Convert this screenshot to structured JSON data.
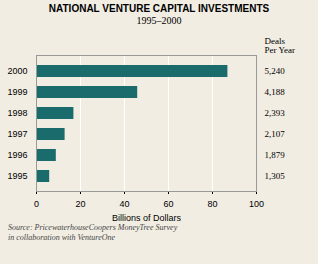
{
  "chart_data": {
    "type": "bar",
    "orientation": "horizontal",
    "title": "NATIONAL VENTURE CAPITAL INVESTMENTS",
    "subtitle": "1995–2000",
    "categories": [
      "1995",
      "1996",
      "1997",
      "1998",
      "1999",
      "2000"
    ],
    "values": [
      6,
      9,
      13,
      17,
      46,
      87
    ],
    "color": "#1a6b6b",
    "background": "#f2ede3",
    "xlim": [
      0,
      100
    ],
    "xticks": [
      0,
      20,
      40,
      60,
      80,
      100
    ],
    "xlabel": "Billions of Dollars",
    "grid": true,
    "right_header": [
      "Deals",
      "Per Year"
    ],
    "deals": [
      "1,305",
      "1,879",
      "2,107",
      "2,393",
      "4,188",
      "5,240"
    ],
    "source": "Source: PricewaterhouseCoopers MoneyTree Survey\nin collaboration with VentureOne"
  }
}
